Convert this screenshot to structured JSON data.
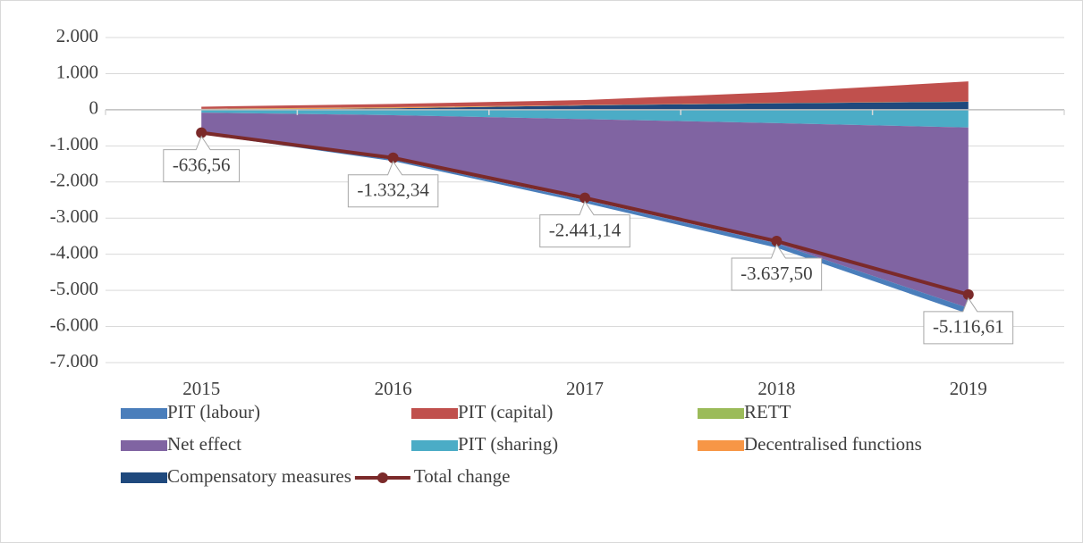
{
  "chart_data": {
    "type": "area",
    "categories": [
      "2015",
      "2016",
      "2017",
      "2018",
      "2019"
    ],
    "ylim": [
      -7000,
      2000
    ],
    "yticks": [
      {
        "value": -7000,
        "label": "-7.000"
      },
      {
        "value": -6000,
        "label": "-6.000"
      },
      {
        "value": -5000,
        "label": "-5.000"
      },
      {
        "value": -4000,
        "label": "-4.000"
      },
      {
        "value": -3000,
        "label": "-3.000"
      },
      {
        "value": -2000,
        "label": "-2.000"
      },
      {
        "value": -1000,
        "label": "-1.000"
      },
      0,
      {
        "value": 1000,
        "label": "1.000"
      },
      {
        "value": 2000,
        "label": "2.000"
      }
    ],
    "grid": true,
    "legend": "bottom",
    "series": [
      {
        "name": "PIT (labour)",
        "color": "#4a7ebb",
        "values": [
          -20,
          -40,
          -80,
          -120,
          -160
        ]
      },
      {
        "name": "PIT (capital)",
        "color": "#c0504d",
        "values": [
          60,
          90,
          140,
          300,
          560
        ]
      },
      {
        "name": "RETT",
        "color": "#9bbb59",
        "values": [
          5,
          5,
          5,
          5,
          5
        ]
      },
      {
        "name": "Net effect",
        "color": "#8064a2",
        "values": [
          -570,
          -1230,
          -2240,
          -3330,
          -5000
        ]
      },
      {
        "name": "PIT (sharing)",
        "color": "#4bacc6",
        "values": [
          -80,
          -150,
          -260,
          -370,
          -490
        ]
      },
      {
        "name": "Decentralised functions",
        "color": "#f79646",
        "values": [
          20,
          25,
          5,
          0,
          0
        ]
      },
      {
        "name": "Compensatory measures",
        "color": "#1f497d",
        "values": [
          0,
          40,
          120,
          180,
          220
        ]
      },
      {
        "name": "Total change",
        "type": "line",
        "color": "#7b2a2a",
        "values": [
          -636.56,
          -1332.34,
          -2441.14,
          -3637.5,
          -5116.61
        ],
        "value_labels": [
          "-636,56",
          "-1.332,34",
          "-2.441,14",
          "-3.637,50",
          "-5.116,61"
        ]
      }
    ]
  }
}
